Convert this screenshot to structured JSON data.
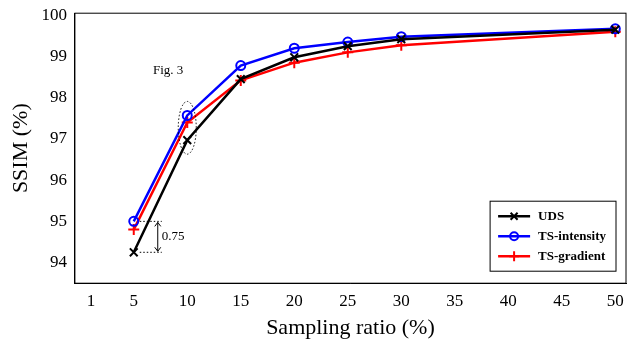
{
  "chart_data": {
    "type": "line",
    "x_label": "Sampling ratio (%)",
    "y_label": "SSIM (%)",
    "x": [
      5,
      10,
      15,
      20,
      25,
      30,
      50
    ],
    "series": [
      {
        "name": "UDS",
        "color": "#000000",
        "marker": "x",
        "values": [
          94.25,
          96.97,
          98.45,
          98.98,
          99.25,
          99.42,
          99.65
        ]
      },
      {
        "name": "TS-intensity",
        "color": "#0000ff",
        "marker": "circle",
        "values": [
          95.0,
          97.57,
          98.78,
          99.2,
          99.35,
          99.48,
          99.67
        ]
      },
      {
        "name": "TS-gradient",
        "color": "#ff0000",
        "marker": "plus",
        "values": [
          94.8,
          97.4,
          98.42,
          98.85,
          99.1,
          99.27,
          99.6
        ]
      }
    ],
    "xlim": [
      -0.5,
      51
    ],
    "xticks": [
      1,
      5,
      10,
      15,
      20,
      25,
      30,
      35,
      40,
      45,
      50
    ],
    "ylim": [
      93.5,
      100.05
    ],
    "yticks": [
      94,
      95,
      96,
      97,
      98,
      99,
      100
    ],
    "grid": false,
    "legend": "lower right",
    "annotations": [
      {
        "text": "Fig. 3",
        "x": 10,
        "y": 98.3
      },
      {
        "text": "0.75",
        "x": 5,
        "y": 94.6
      }
    ]
  }
}
